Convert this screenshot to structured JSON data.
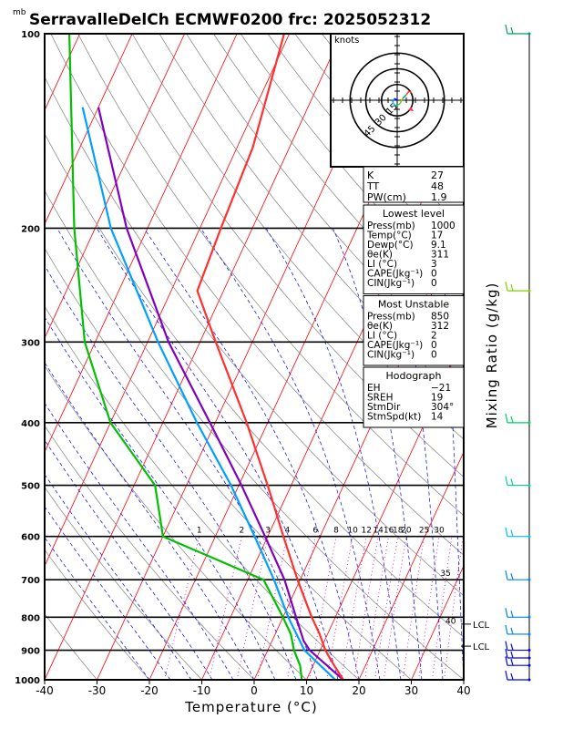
{
  "chart_data": {
    "type": "skew-t",
    "title": "SerravalleDelCh ECMWF0200 frc: 2025052312",
    "xlabel": "Temperature (°C)",
    "ylabel_units": "mb",
    "right_axis_label": "Mixing Ratio (g/kg)",
    "xlim": [
      -40,
      40
    ],
    "x_ticks": [
      -40,
      -30,
      -20,
      -10,
      0,
      10,
      20,
      30,
      40
    ],
    "pressure_ticks": [
      100,
      200,
      300,
      400,
      500,
      600,
      700,
      800,
      900,
      1000
    ],
    "mixing_ratio_labels": [
      "1",
      "2",
      "3",
      "4",
      "6",
      "8",
      "10",
      "12",
      "14",
      "16",
      "18",
      "20",
      "25",
      "30",
      "35",
      "40"
    ],
    "temperature_profile": [
      {
        "p": 1000,
        "t": 17.0
      },
      {
        "p": 950,
        "t": 14.0
      },
      {
        "p": 925,
        "t": 12.5
      },
      {
        "p": 900,
        "t": 11.0
      },
      {
        "p": 850,
        "t": 8.5
      },
      {
        "p": 800,
        "t": 5.5
      },
      {
        "p": 700,
        "t": -0.5
      },
      {
        "p": 600,
        "t": -7.0
      },
      {
        "p": 500,
        "t": -14.5
      },
      {
        "p": 400,
        "t": -24.0
      },
      {
        "p": 300,
        "t": -37.0
      },
      {
        "p": 250,
        "t": -45.0
      },
      {
        "p": 200,
        "t": -46.0
      },
      {
        "p": 150,
        "t": -47.0
      },
      {
        "p": 100,
        "t": -51.0
      }
    ],
    "dewpoint_profile": [
      {
        "p": 1000,
        "t": 9.1
      },
      {
        "p": 950,
        "t": 7.5
      },
      {
        "p": 900,
        "t": 5.0
      },
      {
        "p": 850,
        "t": 3.0
      },
      {
        "p": 800,
        "t": 0.0
      },
      {
        "p": 700,
        "t": -7.0
      },
      {
        "p": 600,
        "t": -30.0
      },
      {
        "p": 500,
        "t": -36.0
      },
      {
        "p": 400,
        "t": -50.0
      },
      {
        "p": 300,
        "t": -62.0
      },
      {
        "p": 200,
        "t": -74.0
      },
      {
        "p": 100,
        "t": -92.0
      }
    ],
    "parcel_profile": [
      {
        "p": 1000,
        "t": 17.0
      },
      {
        "p": 900,
        "t": 8.0
      },
      {
        "p": 870,
        "t": 6.0
      },
      {
        "p": 800,
        "t": 2.5
      },
      {
        "p": 700,
        "t": -3.0
      },
      {
        "p": 600,
        "t": -10.5
      },
      {
        "p": 500,
        "t": -19.5
      },
      {
        "p": 400,
        "t": -31.0
      },
      {
        "p": 300,
        "t": -46.0
      },
      {
        "p": 200,
        "t": -64.0
      },
      {
        "p": 130,
        "t": -80.0
      }
    ],
    "environment_lapse_profile": [
      {
        "p": 1000,
        "t": 15.5
      },
      {
        "p": 900,
        "t": 7.0
      },
      {
        "p": 800,
        "t": 1.0
      },
      {
        "p": 700,
        "t": -5.0
      },
      {
        "p": 600,
        "t": -12.5
      },
      {
        "p": 500,
        "t": -21.5
      },
      {
        "p": 400,
        "t": -33.5
      },
      {
        "p": 300,
        "t": -48.0
      },
      {
        "p": 200,
        "t": -67.0
      },
      {
        "p": 130,
        "t": -83.0
      }
    ],
    "lcl_labels": [
      {
        "p": 820,
        "text": "LCL"
      },
      {
        "p": 887,
        "text": "LCL"
      }
    ],
    "wind_barbs": [
      {
        "p": 1000,
        "color": "#0000ff"
      },
      {
        "p": 950,
        "color": "#0000ff"
      },
      {
        "p": 925,
        "color": "#0000ff"
      },
      {
        "p": 900,
        "color": "#0000ff"
      },
      {
        "p": 850,
        "color": "#0080ff"
      },
      {
        "p": 800,
        "color": "#0080ff"
      },
      {
        "p": 700,
        "color": "#0080ff"
      },
      {
        "p": 600,
        "color": "#00c0ff"
      },
      {
        "p": 500,
        "color": "#00d0a0"
      },
      {
        "p": 400,
        "color": "#00d060"
      },
      {
        "p": 250,
        "color": "#80d000"
      },
      {
        "p": 100,
        "color": "#00a060"
      }
    ],
    "hodograph": {
      "units": "knots",
      "ring_labels": [
        "15",
        "30",
        "45"
      ],
      "ring_values": [
        15,
        30,
        45
      ],
      "storm_motion": {
        "dir": 304,
        "spd": 14
      }
    }
  },
  "indices": {
    "k_label": "K",
    "k_value": "27",
    "tt_label": "TT",
    "tt_value": "48",
    "pw_label": "PW(cm)",
    "pw_value": "1.9"
  },
  "lowest_level": {
    "header": "Lowest level",
    "rows": [
      {
        "label": "Press(mb)",
        "value": "1000"
      },
      {
        "label": "Temp(°C)",
        "value": "17"
      },
      {
        "label": "Dewp(°C)",
        "value": "9.1"
      },
      {
        "label": "θe(K)",
        "value": "311"
      },
      {
        "label": "LI (°C)",
        "value": "3"
      },
      {
        "label": "CAPE(Jkg⁻¹)",
        "value": "0"
      },
      {
        "label": "CIN(Jkg⁻¹)",
        "value": "0"
      }
    ]
  },
  "most_unstable": {
    "header": "Most Unstable",
    "rows": [
      {
        "label": "Press(mb)",
        "value": "850"
      },
      {
        "label": "θe(K)",
        "value": "312"
      },
      {
        "label": "LI (°C)",
        "value": "2"
      },
      {
        "label": "CAPE(Jkg⁻¹)",
        "value": "0"
      },
      {
        "label": "CIN(Jkg⁻¹)",
        "value": "0"
      }
    ]
  },
  "hodograph_table": {
    "header": "Hodograph",
    "rows": [
      {
        "label": "EH",
        "value": "−21"
      },
      {
        "label": "SREH",
        "value": "19"
      },
      {
        "label": "StmDir",
        "value": "304°"
      },
      {
        "label": "StmSpd(kt)",
        "value": "14"
      }
    ]
  },
  "colors": {
    "temperature": "#ff3030",
    "dewpoint": "#00c000",
    "parcel": "#8000c0",
    "env": "#00a0ff",
    "isotherm": "#ff0000",
    "dry_adiabat": "#808080",
    "moist_adiabat": "#0000ff",
    "mixing_ratio": "#c000c0"
  }
}
